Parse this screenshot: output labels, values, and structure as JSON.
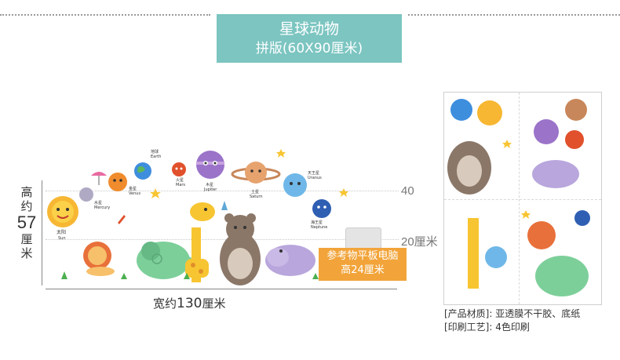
{
  "banner": {
    "title": "星球动物",
    "subtitle": "拼版(60X90厘米)"
  },
  "dimensions": {
    "height_prefix": "高约",
    "height_value": "57",
    "height_unit": "厘米",
    "width_prefix": "宽约",
    "width_value": "130",
    "width_unit": "厘米",
    "mark_40": "40",
    "mark_20": "20厘米"
  },
  "reference": {
    "line1": "参考物平板电脑",
    "line2": "高24厘米"
  },
  "planets": {
    "earth_cn": "地球",
    "earth": "Earth",
    "mars_cn": "火星",
    "mars": "Mars",
    "jupiter_cn": "木星",
    "jupiter": "Jupiter",
    "venus_cn": "金星",
    "venus": "Venus",
    "mercury_cn": "水星",
    "mercury": "Mercury",
    "saturn_cn": "土星",
    "saturn": "Saturn",
    "uranus_cn": "天王星",
    "uranus": "Uranus",
    "neptune_cn": "海王星",
    "neptune": "Neptune",
    "sun_cn": "太阳",
    "sun": "Sun"
  },
  "specs": {
    "material": "[产品材质]: 亚透膜不干胶、底纸",
    "printing": "[印刷工艺]: 4色印刷"
  },
  "colors": {
    "banner": "#7cc5c1",
    "reference": "#f2a43a"
  }
}
